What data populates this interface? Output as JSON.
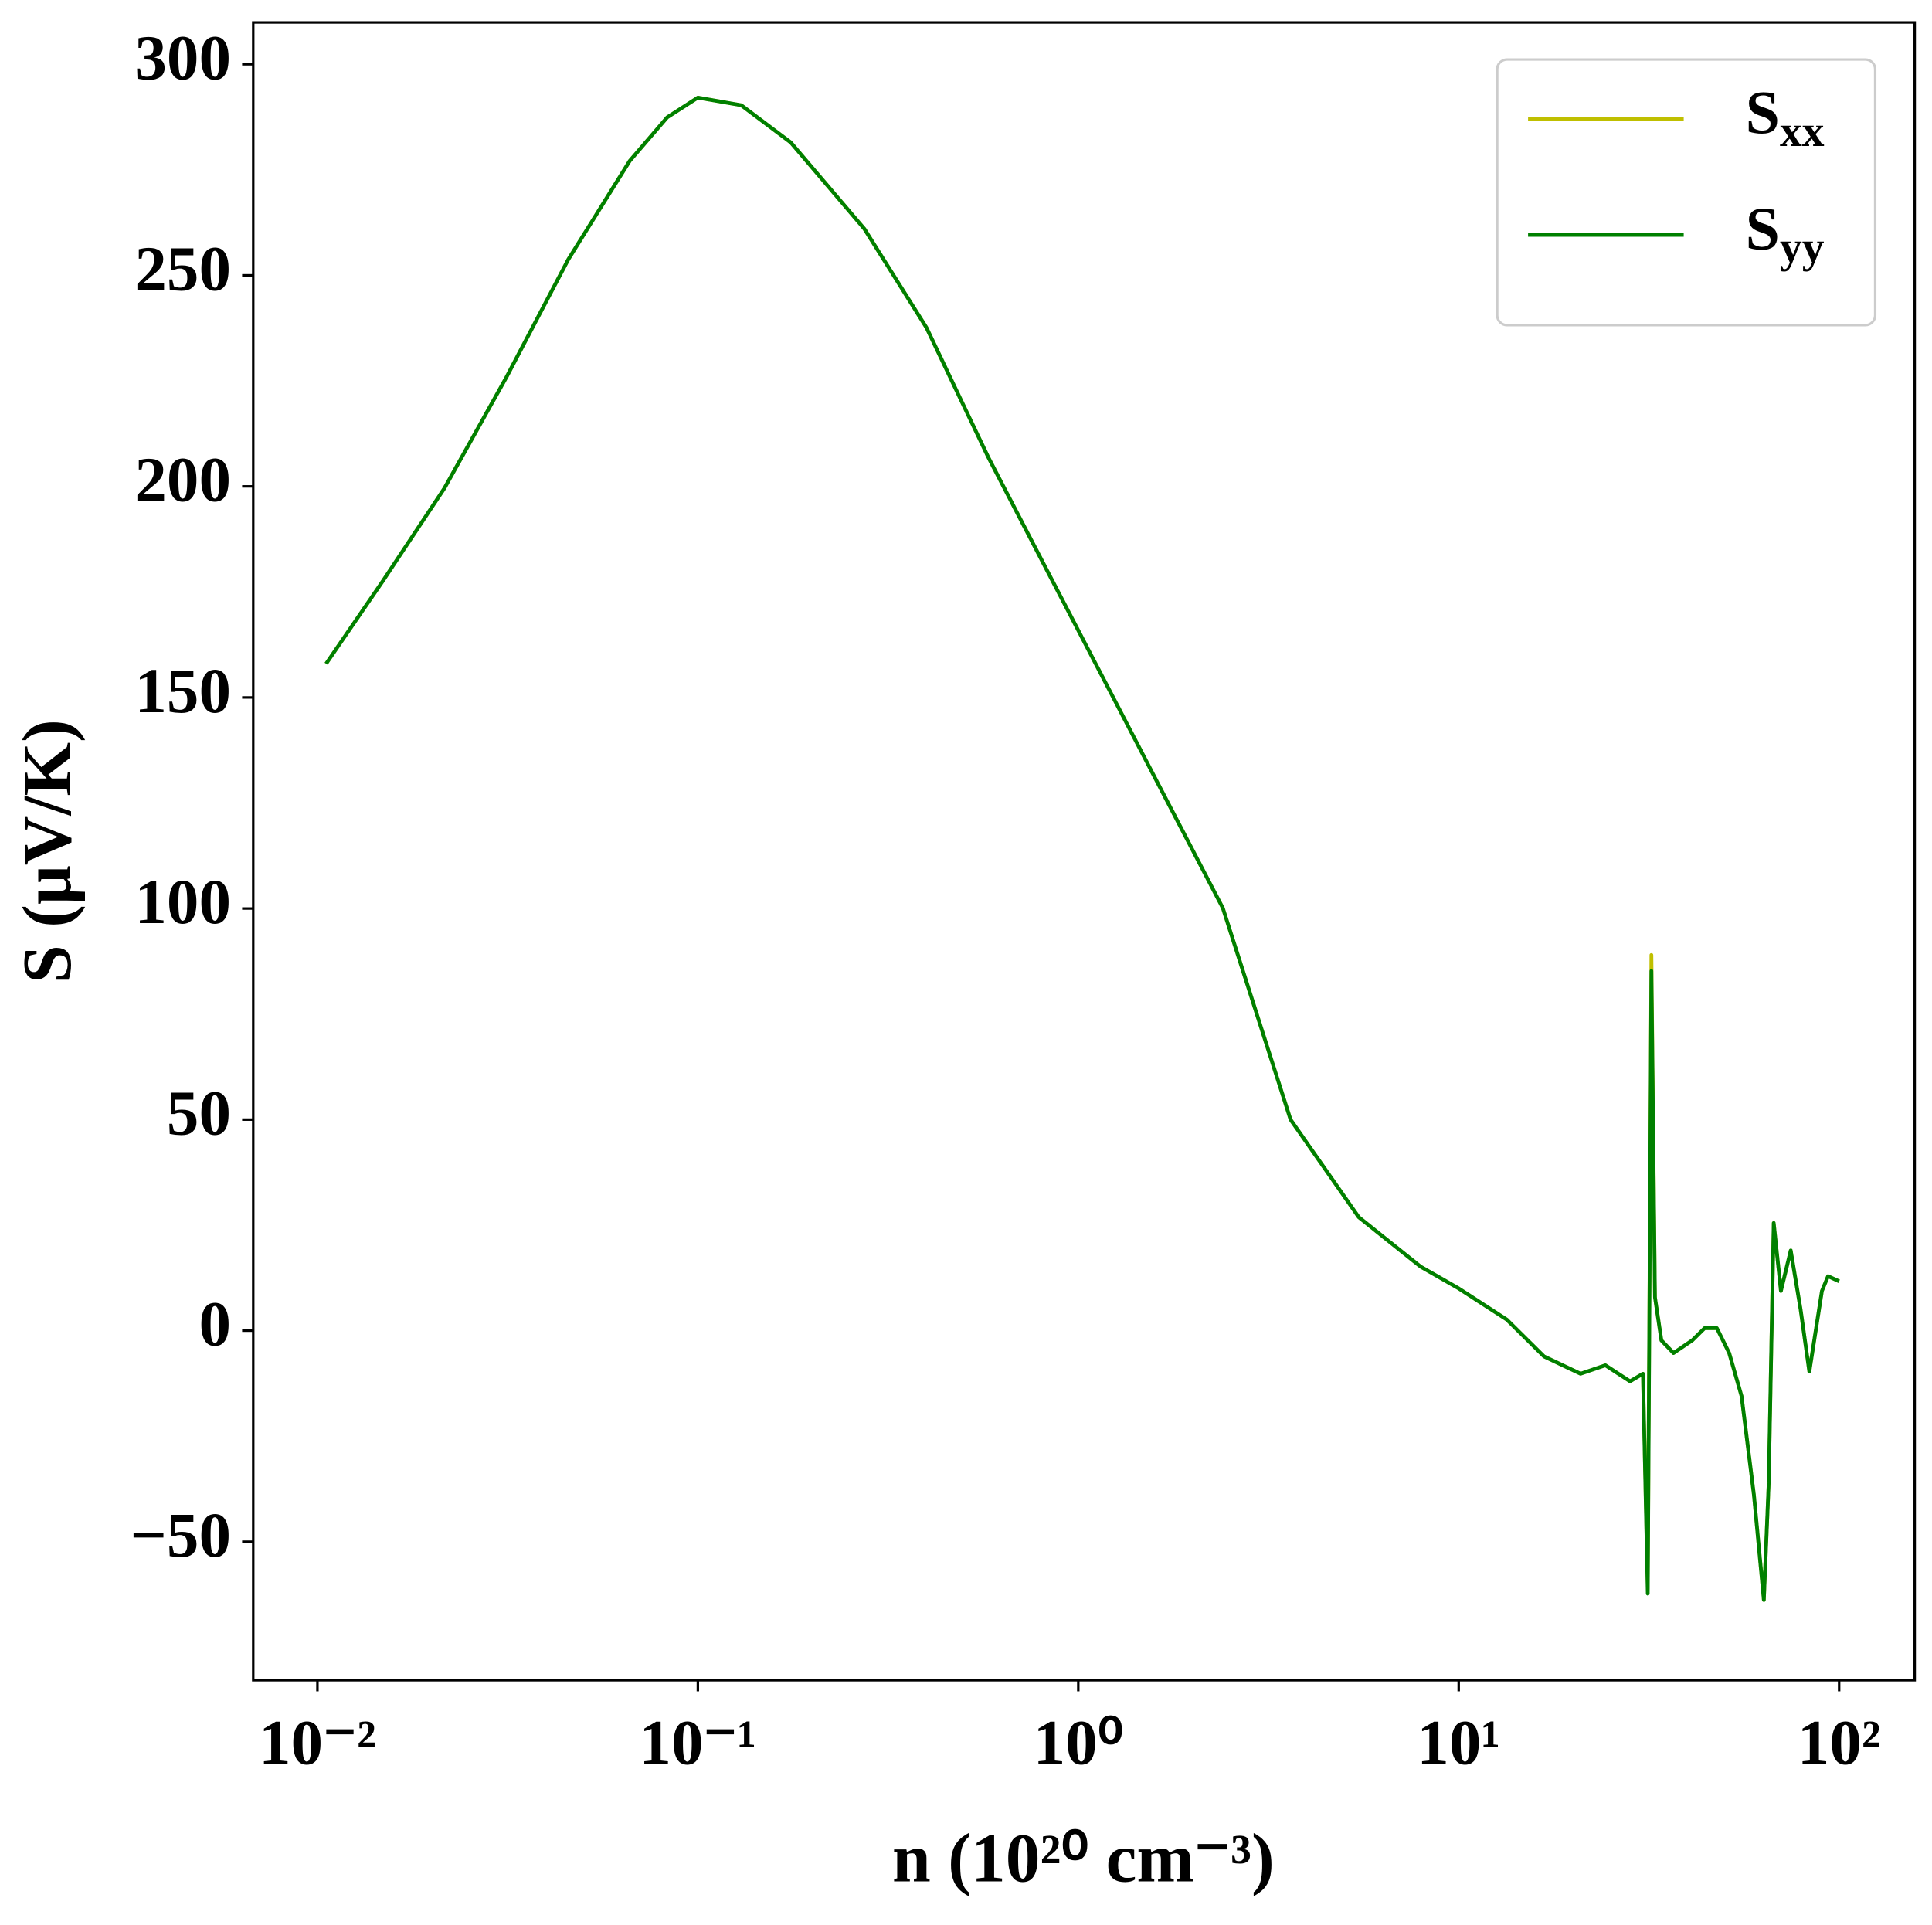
{
  "chart_data": {
    "type": "line",
    "xlabel": "n (10²⁰ cm⁻³)",
    "ylabel": "S (μV/K)",
    "xscale": "log",
    "xlim": [
      0.00678,
      158
    ],
    "ylim": [
      -82.8,
      309.9
    ],
    "xticks": [
      {
        "value": 0.01,
        "label": "10⁻²"
      },
      {
        "value": 0.1,
        "label": "10⁻¹"
      },
      {
        "value": 1,
        "label": "10⁰"
      },
      {
        "value": 10,
        "label": "10¹"
      },
      {
        "value": 100,
        "label": "10²"
      }
    ],
    "yticks": [
      {
        "value": -50,
        "label": "−50"
      },
      0,
      50,
      100,
      150,
      200,
      250,
      300
    ],
    "legend": "upper right",
    "x": [
      0.01054,
      0.01486,
      0.02158,
      0.0314,
      0.0456,
      0.0662,
      0.083,
      0.1,
      0.13,
      0.1754,
      0.274,
      0.399,
      0.58,
      0.842,
      1.224,
      1.778,
      2.399,
      3.614,
      5.46,
      7.93,
      10,
      13.39,
      16.76,
      20.9,
      24.3,
      28.2,
      30.5,
      31.4,
      32.1,
      32.8,
      34.1,
      36.7,
      41.1,
      44.3,
      47.7,
      51.4,
      55.4,
      59.7,
      63.4,
      65.3,
      67.3,
      70.3,
      74.6,
      79.2,
      83.5,
      90.1,
      93.5,
      100
    ],
    "series": [
      {
        "name": "Sxx",
        "color": "#bfbf00",
        "values": [
          158.0,
          177.6,
          199.6,
          225.9,
          253.7,
          277.1,
          287.4,
          292.1,
          290.3,
          281.5,
          261.0,
          237.6,
          206.9,
          178.8,
          150.7,
          122.6,
          100.1,
          50.0,
          26.9,
          15.2,
          10.0,
          2.6,
          -6.1,
          -10.2,
          -8.2,
          -12.0,
          -10.2,
          -61.0,
          89.0,
          7.9,
          -2.3,
          -5.3,
          -2.3,
          0.6,
          0.6,
          -5.3,
          -15.5,
          -38.9,
          -63.8,
          -36.0,
          25.5,
          9.4,
          19.0,
          5.0,
          -9.7,
          9.4,
          12.9,
          11.7
        ]
      },
      {
        "name": "Syy",
        "color": "#008000",
        "values": [
          158.0,
          177.6,
          199.6,
          225.9,
          253.7,
          277.1,
          287.4,
          292.1,
          290.3,
          281.5,
          261.0,
          237.6,
          206.9,
          178.8,
          150.7,
          122.6,
          100.1,
          50.0,
          26.9,
          15.2,
          10.0,
          2.6,
          -6.1,
          -10.2,
          -8.2,
          -12.0,
          -10.2,
          -62.3,
          85.2,
          7.9,
          -2.3,
          -5.3,
          -2.3,
          0.6,
          0.6,
          -5.3,
          -15.5,
          -38.9,
          -63.8,
          -36.0,
          25.5,
          9.4,
          19.0,
          5.0,
          -9.7,
          9.4,
          12.9,
          11.7
        ]
      }
    ]
  }
}
